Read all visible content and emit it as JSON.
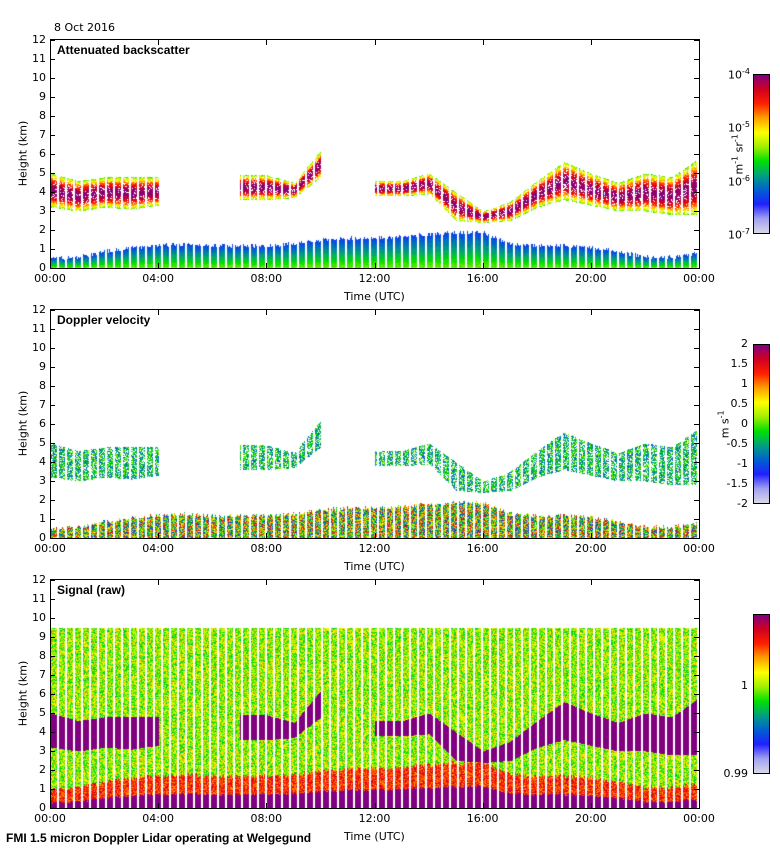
{
  "date": "8 Oct 2016",
  "footer": "FMI 1.5 micron Doppler Lidar operating at Welgegund",
  "chart_data": [
    {
      "type": "heatmap",
      "title": "Attenuated backscatter",
      "xlabel": "Time (UTC)",
      "ylabel": "Height (km)",
      "xticks": [
        "00:00",
        "04:00",
        "08:00",
        "12:00",
        "16:00",
        "20:00",
        "00:00"
      ],
      "yticks": [
        "0",
        "1",
        "2",
        "3",
        "4",
        "5",
        "6",
        "7",
        "8",
        "9",
        "10",
        "11",
        "12"
      ],
      "ylim": [
        0,
        12
      ],
      "colorbar": {
        "ticks": [
          "10",
          "10",
          "10",
          "10"
        ],
        "exponents": [
          "-7",
          "-6",
          "-5",
          "-4"
        ],
        "label_base": "m",
        "label_exp1": "-1",
        "label_mid": " sr",
        "label_exp2": "-1",
        "range": [
          1e-07,
          0.0001
        ],
        "scale": "log"
      }
    },
    {
      "type": "heatmap",
      "title": "Doppler velocity",
      "xlabel": "Time (UTC)",
      "ylabel": "Height (km)",
      "xticks": [
        "00:00",
        "04:00",
        "08:00",
        "12:00",
        "16:00",
        "20:00",
        "00:00"
      ],
      "yticks": [
        "0",
        "1",
        "2",
        "3",
        "4",
        "5",
        "6",
        "7",
        "8",
        "9",
        "10",
        "11",
        "12"
      ],
      "ylim": [
        0,
        12
      ],
      "colorbar": {
        "ticks": [
          "-2",
          "-1.5",
          "-1",
          "-0.5",
          "0",
          "0.5",
          "1",
          "1.5",
          "2"
        ],
        "label_base": "m s",
        "label_exp": "-1",
        "range": [
          -2,
          2
        ],
        "scale": "linear"
      }
    },
    {
      "type": "heatmap",
      "title": "Signal (raw)",
      "xlabel": "Time (UTC)",
      "ylabel": "Height (km)",
      "xticks": [
        "00:00",
        "04:00",
        "08:00",
        "12:00",
        "16:00",
        "20:00",
        "00:00"
      ],
      "yticks": [
        "0",
        "1",
        "2",
        "3",
        "4",
        "5",
        "6",
        "7",
        "8",
        "9",
        "10",
        "11",
        "12"
      ],
      "ylim": [
        0,
        12
      ],
      "colorbar": {
        "ticks": [
          "0.99",
          "1"
        ],
        "range": [
          0.99,
          1.008
        ],
        "scale": "linear"
      }
    }
  ],
  "profiles": {
    "hours": [
      0,
      1,
      2,
      3,
      4,
      5,
      6,
      7,
      8,
      9,
      10,
      11,
      12,
      13,
      14,
      15,
      16,
      17,
      18,
      19,
      20,
      21,
      22,
      23,
      24
    ],
    "boundary_layer_top_km": [
      0.5,
      0.6,
      0.9,
      1.1,
      1.2,
      1.3,
      1.2,
      1.2,
      1.2,
      1.3,
      1.5,
      1.6,
      1.6,
      1.7,
      1.8,
      1.9,
      1.9,
      1.3,
      1.2,
      1.2,
      1.1,
      0.9,
      0.6,
      0.6,
      0.8
    ],
    "cloud_base_km": [
      3.2,
      3.0,
      3.2,
      3.1,
      3.3,
      null,
      null,
      3.6,
      3.6,
      3.7,
      4.8,
      null,
      3.8,
      3.8,
      3.9,
      2.5,
      2.4,
      2.5,
      3.2,
      3.6,
      3.3,
      3.0,
      3.0,
      2.8,
      2.8
    ],
    "cloud_top_km": [
      5.0,
      4.6,
      4.8,
      4.8,
      4.8,
      null,
      null,
      4.9,
      4.9,
      4.5,
      6.2,
      null,
      4.6,
      4.6,
      5.0,
      4.0,
      3.0,
      3.5,
      4.6,
      5.6,
      5.0,
      4.5,
      5.0,
      4.8,
      5.8
    ]
  },
  "colors": {
    "cmap": [
      "#d8d8e8",
      "#a0a0f0",
      "#2020ff",
      "#0060d0",
      "#00a080",
      "#00e000",
      "#a0f000",
      "#ffff00",
      "#ffa000",
      "#ff2000",
      "#d00020",
      "#800080"
    ]
  }
}
